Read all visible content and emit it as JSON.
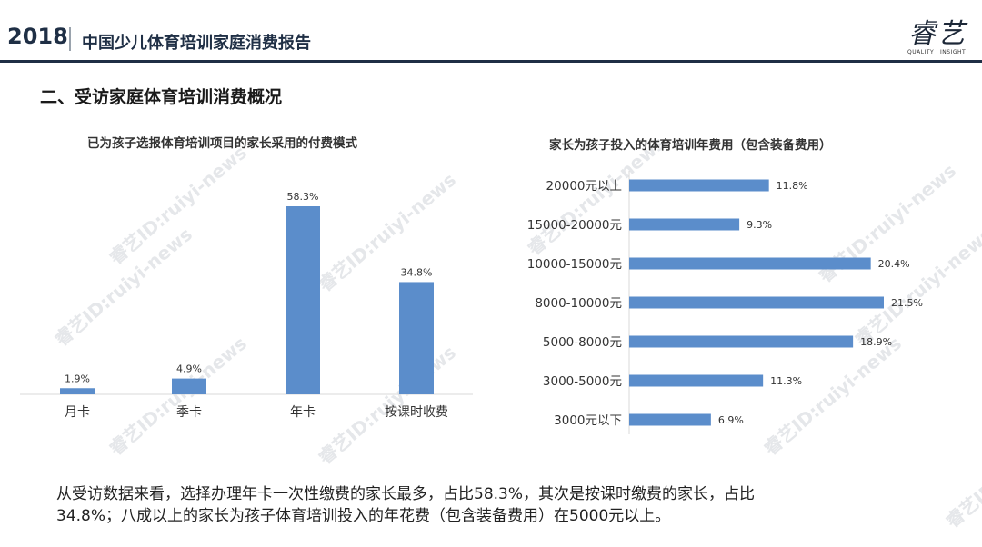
{
  "header": {
    "year": "2018",
    "report_title": "中国少儿体育培训家庭消费报告",
    "logo_text": "睿艺",
    "logo_sub_left": "QUALITY",
    "logo_sub_right": "INSIGHT"
  },
  "section_title": "二、受访家庭体育培训消费概况",
  "watermark": "睿艺ID:ruiyi-news",
  "summary_lines": [
    "从受访数据来看，选择办理年卡一次性缴费的家长最多，占比58.3%，其次是按课时缴费的家长，占比",
    "34.8%；八成以上的家长为孩子体育培训投入的年花费（包含装备费用）在5000元以上。"
  ],
  "colors": {
    "bar": "#5b8dcb",
    "axis": "#d9d9d9",
    "header": "#1f2f45"
  },
  "chart_data": [
    {
      "type": "bar",
      "title": "已为孩子选报体育培训项目的家长采用的付费模式",
      "categories": [
        "月卡",
        "季卡",
        "年卡",
        "按课时收费"
      ],
      "values": [
        1.9,
        4.9,
        58.3,
        34.8
      ],
      "value_labels": [
        "1.9%",
        "4.9%",
        "58.3%",
        "34.8%"
      ],
      "ylim": [
        0,
        60
      ],
      "grid": false,
      "legend": "none"
    },
    {
      "type": "bar",
      "orientation": "horizontal",
      "title": "家长为孩子投入的体育培训年费用（包含装备费用）",
      "categories": [
        "20000元以上",
        "15000-20000元",
        "10000-15000元",
        "8000-10000元",
        "5000-8000元",
        "3000-5000元",
        "3000元以下"
      ],
      "values": [
        11.8,
        9.3,
        20.4,
        21.5,
        18.9,
        11.3,
        6.9
      ],
      "value_labels": [
        "11.8%",
        "9.3%",
        "20.4%",
        "21.5%",
        "18.9%",
        "11.3%",
        "6.9%"
      ],
      "xlim": [
        0,
        22
      ],
      "grid": false,
      "legend": "none"
    }
  ]
}
